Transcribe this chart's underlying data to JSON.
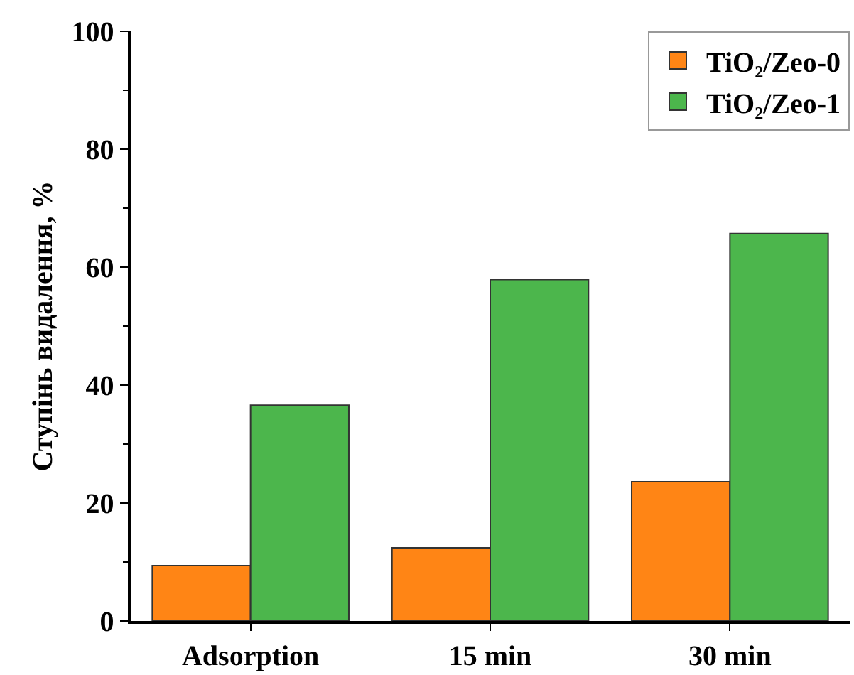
{
  "chart_data": {
    "type": "bar",
    "ylabel": "Ступінь видалення, %",
    "categories": [
      "Adsorption",
      "15 min",
      "30 min"
    ],
    "series": [
      {
        "name": "TiO₂/Zeo-0",
        "color": "#ff8515",
        "values": [
          9.4,
          12.4,
          23.6
        ]
      },
      {
        "name": "TiO₂/Zeo-1",
        "color": "#4cb64c",
        "values": [
          36.6,
          57.9,
          65.7
        ]
      }
    ],
    "ylim": [
      0,
      100
    ],
    "yticks": [
      0,
      20,
      40,
      60,
      80,
      100
    ],
    "grid": false,
    "legend": "top right"
  }
}
